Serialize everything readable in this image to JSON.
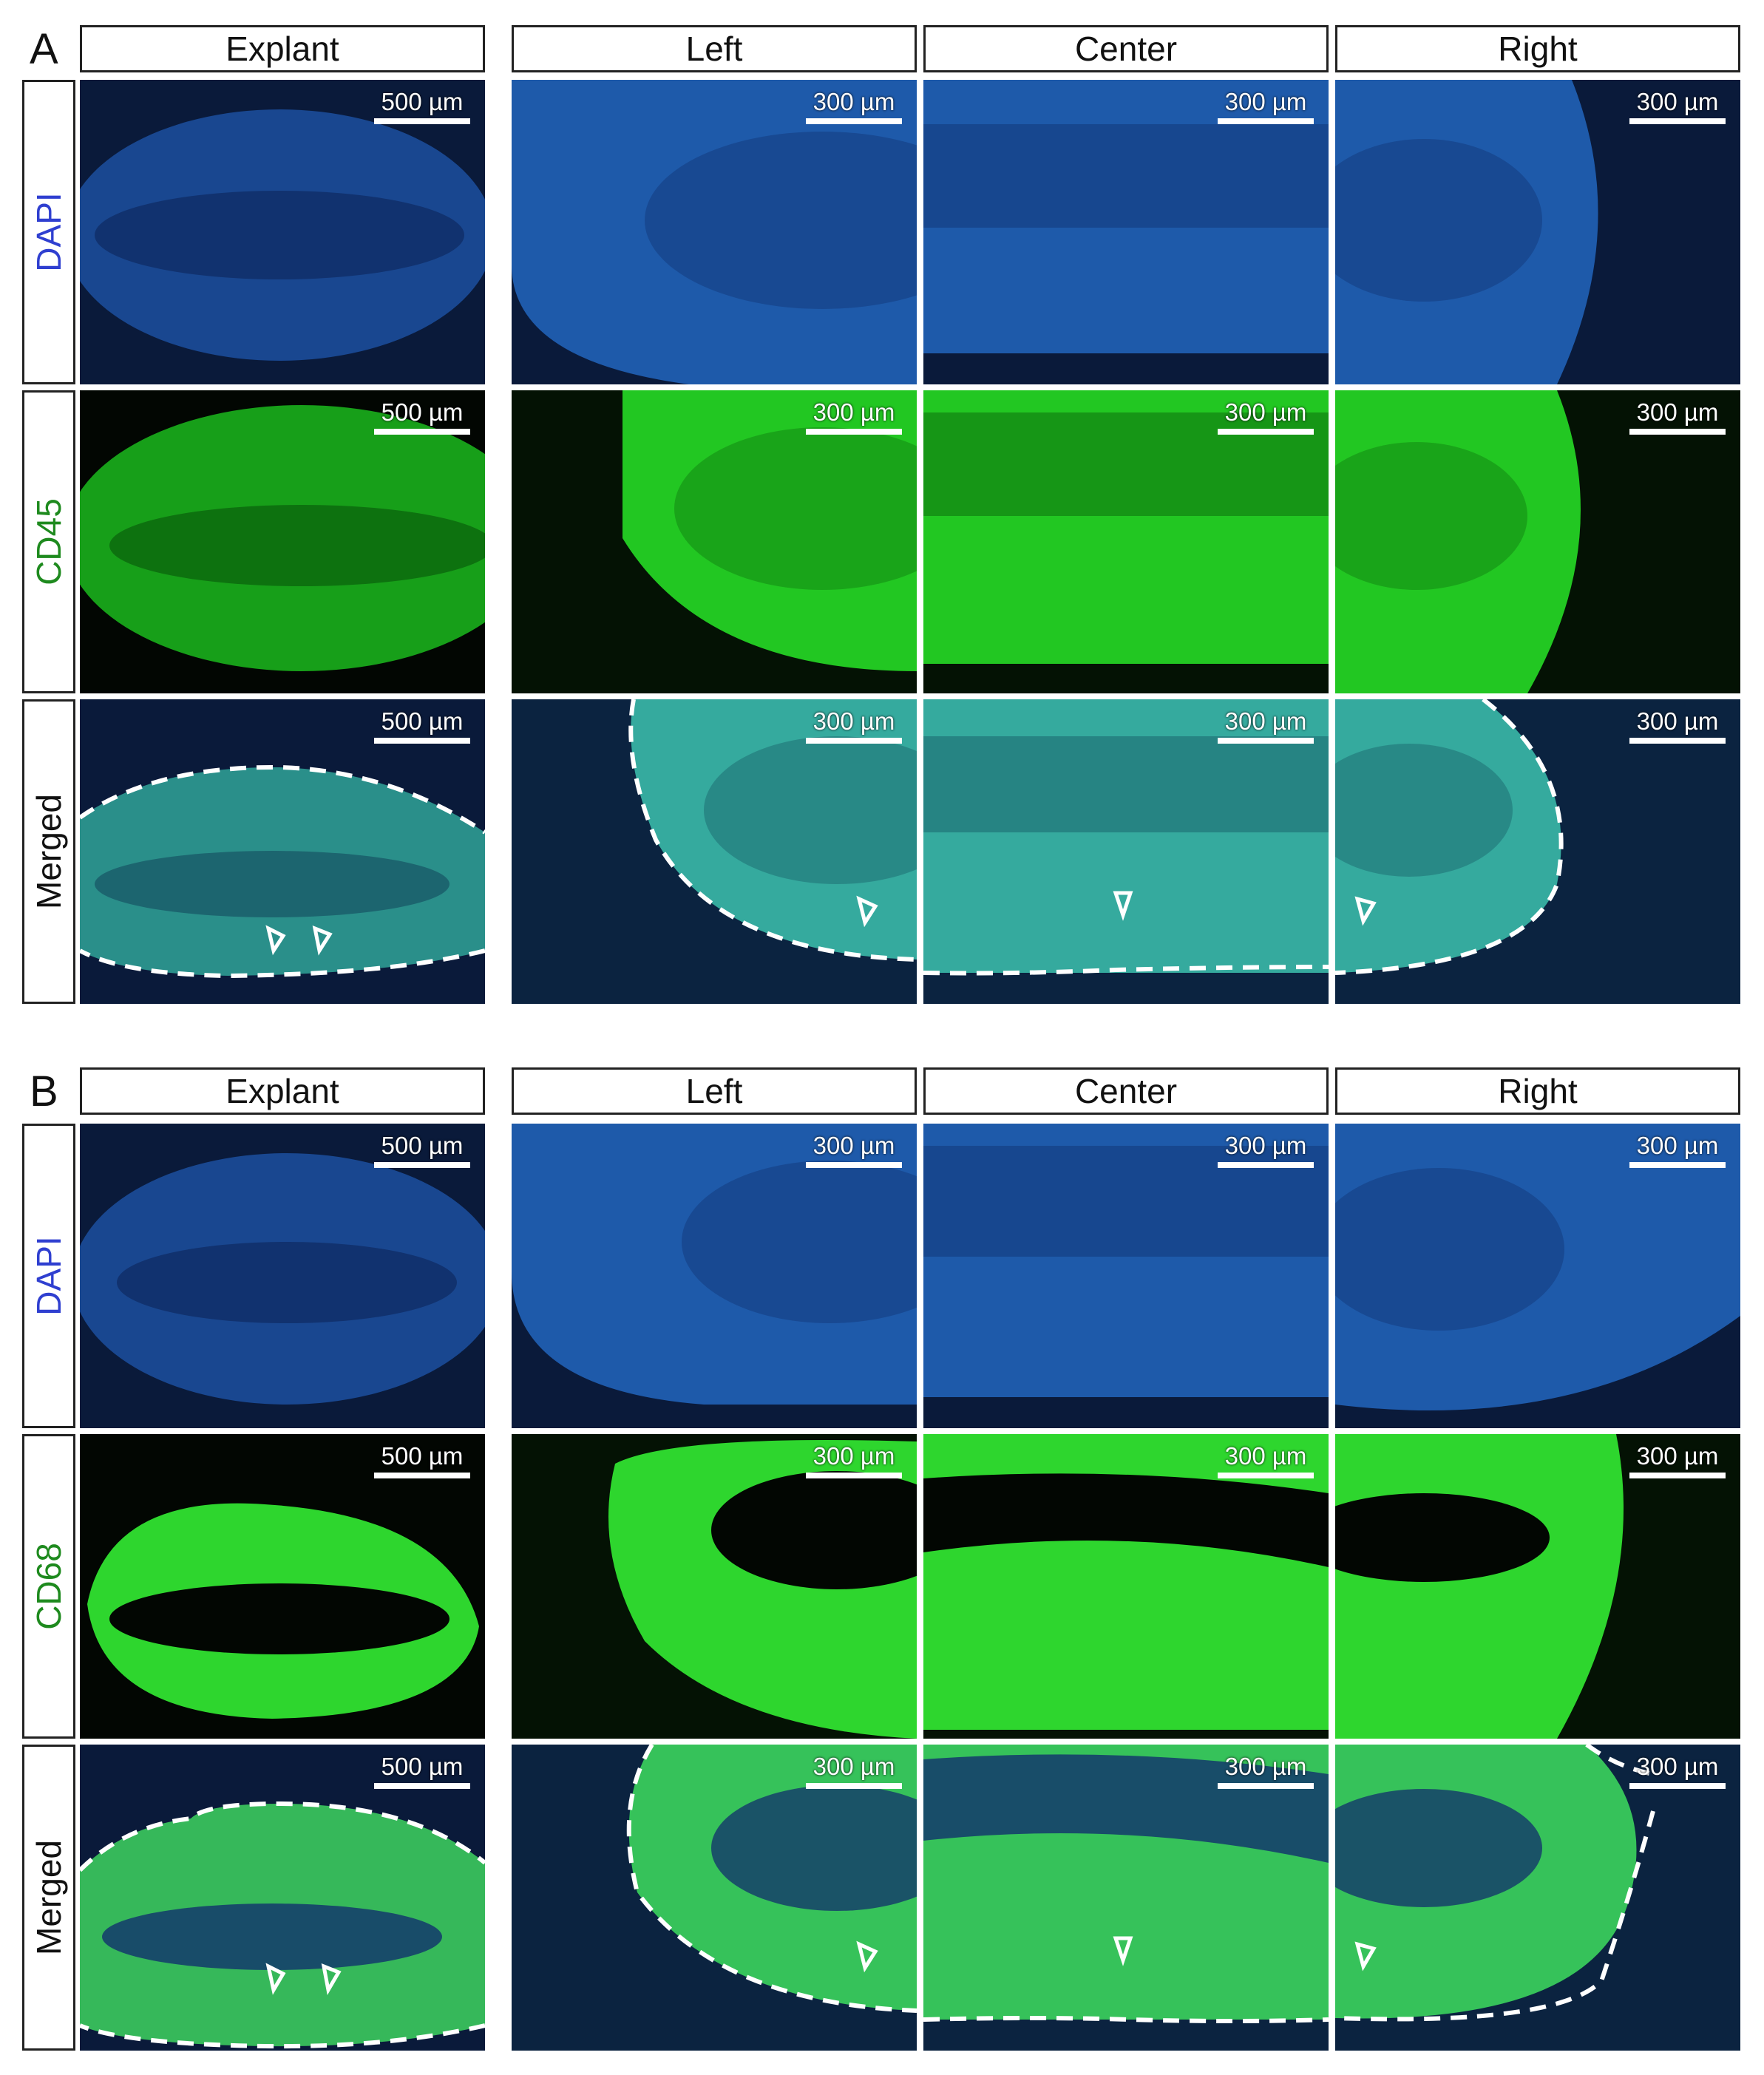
{
  "panels": [
    {
      "letter": "A",
      "columns": [
        "Explant",
        "Left",
        "Center",
        "Right"
      ],
      "rows": [
        {
          "label": "DAPI",
          "label_color": "#2f3fd0",
          "channel": "dapi",
          "scale_bars": [
            "500 µm",
            "300 µm",
            "300 µm",
            "300 µm"
          ]
        },
        {
          "label": "CD45",
          "label_color": "#1e8a1e",
          "channel": "green",
          "scale_bars": [
            "500 µm",
            "300 µm",
            "300 µm",
            "300 µm"
          ]
        },
        {
          "label": "Merged",
          "label_color": "#111111",
          "channel": "merged",
          "scale_bars": [
            "500 µm",
            "300 µm",
            "300 µm",
            "300 µm"
          ]
        }
      ]
    },
    {
      "letter": "B",
      "columns": [
        "Explant",
        "Left",
        "Center",
        "Right"
      ],
      "rows": [
        {
          "label": "DAPI",
          "label_color": "#2f3fd0",
          "channel": "dapi",
          "scale_bars": [
            "500 µm",
            "300 µm",
            "300 µm",
            "300 µm"
          ]
        },
        {
          "label": "CD68",
          "label_color": "#1e8a1e",
          "channel": "green",
          "scale_bars": [
            "500 µm",
            "300 µm",
            "300 µm",
            "300 µm"
          ]
        },
        {
          "label": "Merged",
          "label_color": "#111111",
          "channel": "merged",
          "scale_bars": [
            "500 µm",
            "300 µm",
            "300 µm",
            "300 µm"
          ]
        }
      ]
    }
  ],
  "arrow_icon": "open-arrowhead-icon",
  "boundary_style": "white dashed outline"
}
